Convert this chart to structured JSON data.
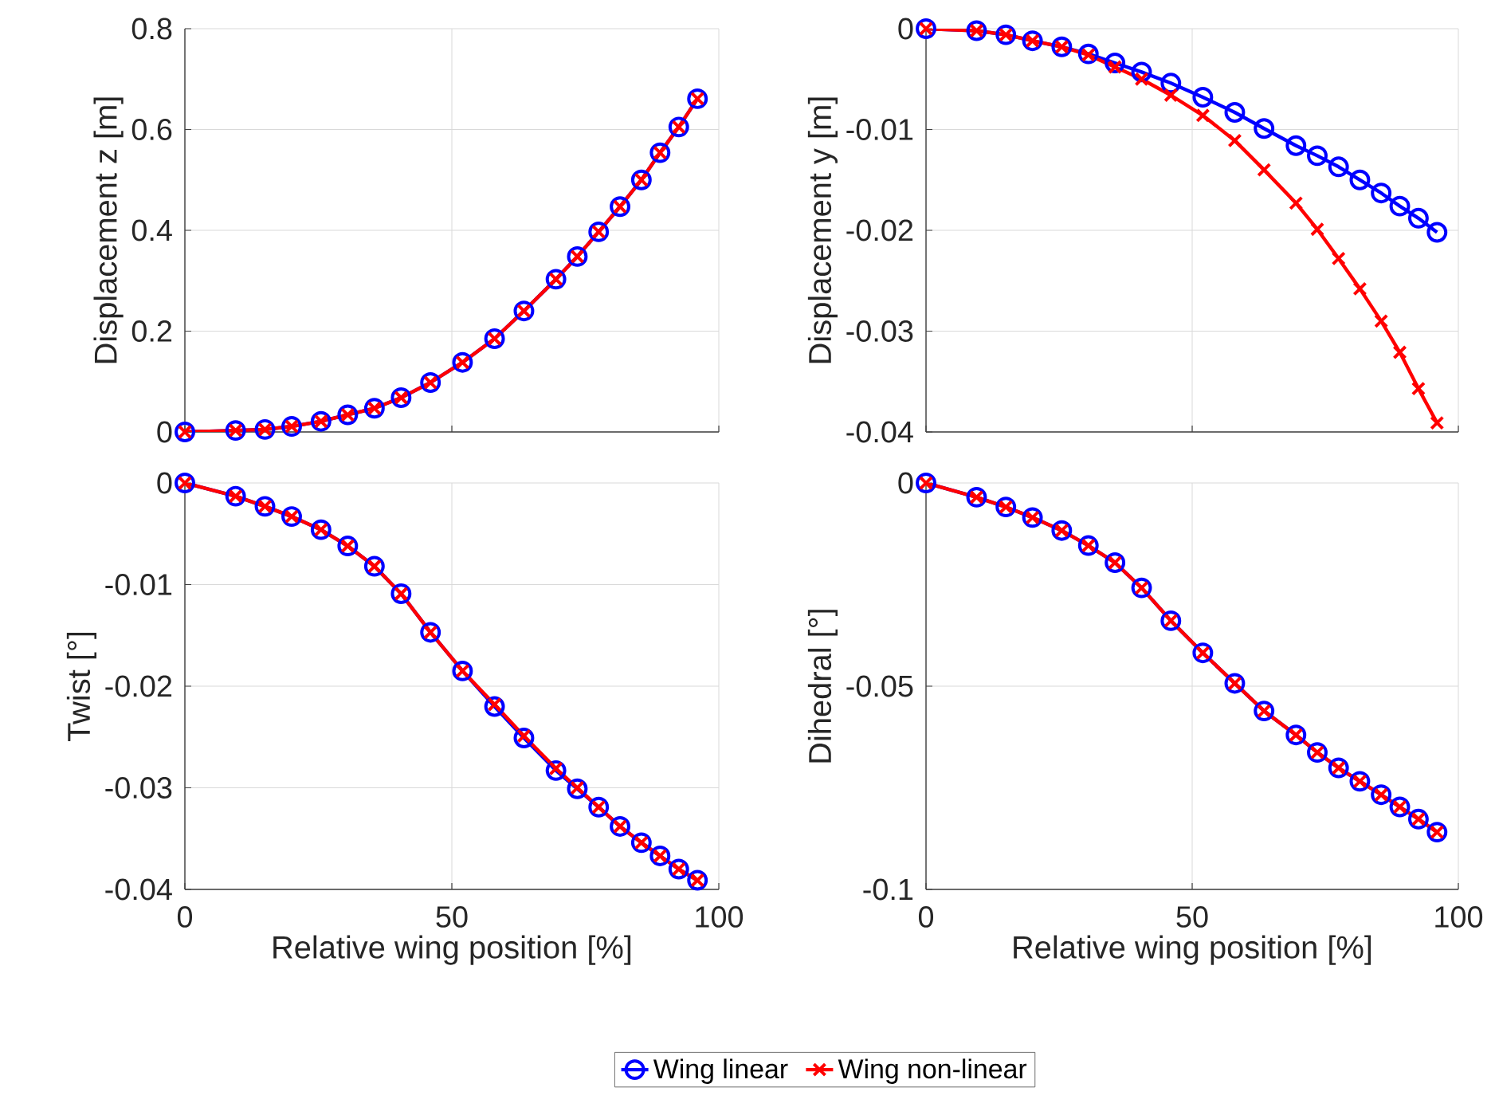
{
  "chart_data": [
    {
      "type": "line",
      "ylabel": "Displacement z [m]",
      "x": [
        0,
        9.5,
        15,
        20,
        25.5,
        30.5,
        35.5,
        40.5,
        46,
        52,
        58,
        63.5,
        69.5,
        73.5,
        77.5,
        81.5,
        85.5,
        89,
        92.5,
        96
      ],
      "xlim": [
        0,
        100
      ],
      "xticks": [
        0,
        50,
        100
      ],
      "ylim": [
        0,
        0.8
      ],
      "yticks": [
        0,
        0.2,
        0.4,
        0.6,
        0.8
      ],
      "grid": true,
      "tick_labels": "y",
      "series": [
        {
          "color": "#0000ff",
          "marker": "circle",
          "values": [
            0,
            0.003,
            0.005,
            0.011,
            0.021,
            0.034,
            0.047,
            0.068,
            0.098,
            0.138,
            0.185,
            0.24,
            0.303,
            0.348,
            0.397,
            0.447,
            0.5,
            0.554,
            0.605,
            0.661
          ]
        },
        {
          "color": "#ff0000",
          "marker": "cross",
          "values": [
            0,
            0.003,
            0.005,
            0.011,
            0.021,
            0.034,
            0.047,
            0.068,
            0.098,
            0.138,
            0.185,
            0.24,
            0.303,
            0.348,
            0.397,
            0.447,
            0.5,
            0.554,
            0.605,
            0.661
          ]
        }
      ]
    },
    {
      "type": "line",
      "ylabel": "Displacement y [m]",
      "x": [
        0,
        9.5,
        15,
        20,
        25.5,
        30.5,
        35.5,
        40.5,
        46,
        52,
        58,
        63.5,
        69.5,
        73.5,
        77.5,
        81.5,
        85.5,
        89,
        92.5,
        96
      ],
      "xlim": [
        0,
        100
      ],
      "xticks": [
        0,
        50,
        100
      ],
      "ylim": [
        -0.04,
        0
      ],
      "yticks": [
        -0.04,
        -0.03,
        -0.02,
        -0.01,
        0
      ],
      "grid": true,
      "tick_labels": "y",
      "series": [
        {
          "color": "#0000ff",
          "marker": "circle",
          "values": [
            0,
            -0.0002,
            -0.0006,
            -0.0012,
            -0.0018,
            -0.0025,
            -0.0034,
            -0.0043,
            -0.0054,
            -0.0068,
            -0.0083,
            -0.0099,
            -0.0116,
            -0.0126,
            -0.0137,
            -0.015,
            -0.0163,
            -0.0176,
            -0.0188,
            -0.0202
          ]
        },
        {
          "color": "#ff0000",
          "marker": "cross",
          "values": [
            0,
            -0.0002,
            -0.0006,
            -0.0012,
            -0.0018,
            -0.0026,
            -0.0038,
            -0.005,
            -0.0066,
            -0.0086,
            -0.0111,
            -0.014,
            -0.0173,
            -0.0199,
            -0.0228,
            -0.0258,
            -0.029,
            -0.0321,
            -0.0357,
            -0.0391
          ]
        }
      ]
    },
    {
      "type": "line",
      "ylabel": "Twist [°]",
      "xlabel": "Relative wing position [%]",
      "x": [
        0,
        9.5,
        15,
        20,
        25.5,
        30.5,
        35.5,
        40.5,
        46,
        52,
        58,
        63.5,
        69.5,
        73.5,
        77.5,
        81.5,
        85.5,
        89,
        92.5,
        96
      ],
      "xlim": [
        0,
        100
      ],
      "xticks": [
        0,
        50,
        100
      ],
      "ylim": [
        -0.04,
        0
      ],
      "yticks": [
        -0.04,
        -0.03,
        -0.02,
        -0.01,
        0
      ],
      "grid": true,
      "series": [
        {
          "color": "#0000ff",
          "marker": "circle",
          "values": [
            0,
            -0.0013,
            -0.0023,
            -0.0033,
            -0.0046,
            -0.0062,
            -0.0082,
            -0.0109,
            -0.0147,
            -0.0185,
            -0.022,
            -0.0251,
            -0.0283,
            -0.0301,
            -0.0319,
            -0.0338,
            -0.0354,
            -0.0367,
            -0.038,
            -0.0391
          ]
        },
        {
          "color": "#ff0000",
          "marker": "cross",
          "values": [
            0,
            -0.0013,
            -0.0023,
            -0.0033,
            -0.0046,
            -0.0062,
            -0.0082,
            -0.0109,
            -0.0147,
            -0.0185,
            -0.0218,
            -0.0249,
            -0.0281,
            -0.03,
            -0.0319,
            -0.0338,
            -0.0354,
            -0.0367,
            -0.038,
            -0.0391
          ]
        }
      ]
    },
    {
      "type": "line",
      "ylabel": "Dihedral [°]",
      "xlabel": "Relative wing position [%]",
      "x": [
        0,
        9.5,
        15,
        20,
        25.5,
        30.5,
        35.5,
        40.5,
        46,
        52,
        58,
        63.5,
        69.5,
        73.5,
        77.5,
        81.5,
        85.5,
        89,
        92.5,
        96
      ],
      "xlim": [
        0,
        100
      ],
      "xticks": [
        0,
        50,
        100
      ],
      "ylim": [
        -0.1,
        0
      ],
      "yticks": [
        -0.1,
        -0.05,
        0
      ],
      "grid": true,
      "legend": "bottom",
      "series": [
        {
          "name": "Wing linear",
          "color": "#0000ff",
          "marker": "circle",
          "values": [
            0,
            -0.0035,
            -0.0059,
            -0.0085,
            -0.0117,
            -0.0154,
            -0.0196,
            -0.0258,
            -0.0339,
            -0.0418,
            -0.0493,
            -0.0561,
            -0.062,
            -0.0663,
            -0.0701,
            -0.0734,
            -0.0767,
            -0.0797,
            -0.0827,
            -0.0859
          ]
        },
        {
          "name": "Wing non-linear",
          "color": "#ff0000",
          "marker": "cross",
          "values": [
            0,
            -0.0035,
            -0.0059,
            -0.0085,
            -0.0117,
            -0.0154,
            -0.0196,
            -0.0258,
            -0.0339,
            -0.0418,
            -0.0493,
            -0.0561,
            -0.062,
            -0.0663,
            -0.0701,
            -0.0734,
            -0.0767,
            -0.0797,
            -0.0827,
            -0.0859
          ]
        }
      ]
    }
  ]
}
